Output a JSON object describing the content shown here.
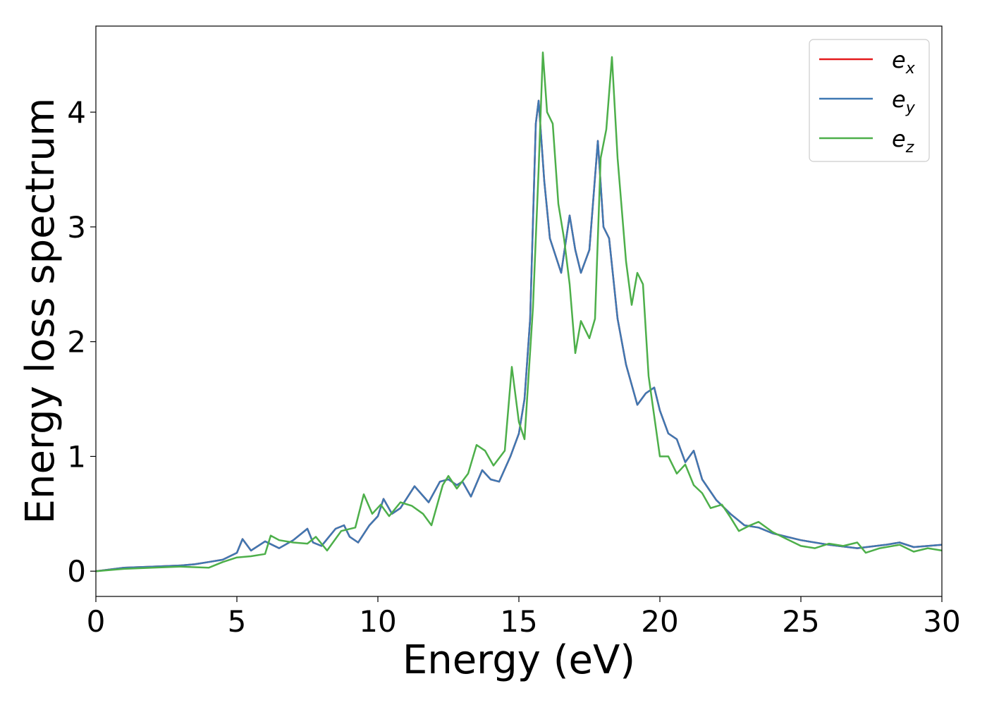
{
  "chart_data": {
    "type": "line",
    "title": "",
    "xlabel": "Energy (eV)",
    "ylabel": "Energy loss spectrum",
    "xlim": [
      0,
      30
    ],
    "ylim": [
      -0.22,
      4.75
    ],
    "x_ticks": [
      0,
      5,
      10,
      15,
      20,
      25,
      30
    ],
    "y_ticks": [
      0,
      1,
      2,
      3,
      4
    ],
    "grid": false,
    "legend_position": "top-right",
    "series": [
      {
        "name": "e_x",
        "label_base": "e",
        "label_sub": "x",
        "color": "#e41a1c",
        "points": [
          [
            0,
            0
          ],
          [
            1,
            0.03
          ],
          [
            2,
            0.04
          ],
          [
            3,
            0.05
          ],
          [
            3.5,
            0.06
          ],
          [
            4,
            0.08
          ],
          [
            4.5,
            0.1
          ],
          [
            5,
            0.16
          ],
          [
            5.2,
            0.28
          ],
          [
            5.5,
            0.18
          ],
          [
            6,
            0.26
          ],
          [
            6.5,
            0.2
          ],
          [
            7,
            0.27
          ],
          [
            7.5,
            0.37
          ],
          [
            7.7,
            0.25
          ],
          [
            8,
            0.22
          ],
          [
            8.5,
            0.37
          ],
          [
            8.8,
            0.4
          ],
          [
            9,
            0.3
          ],
          [
            9.3,
            0.25
          ],
          [
            9.7,
            0.4
          ],
          [
            10,
            0.48
          ],
          [
            10.2,
            0.63
          ],
          [
            10.5,
            0.5
          ],
          [
            10.8,
            0.55
          ],
          [
            11.3,
            0.74
          ],
          [
            11.8,
            0.6
          ],
          [
            12.2,
            0.78
          ],
          [
            12.5,
            0.8
          ],
          [
            12.8,
            0.75
          ],
          [
            13,
            0.78
          ],
          [
            13.3,
            0.65
          ],
          [
            13.7,
            0.88
          ],
          [
            14,
            0.8
          ],
          [
            14.3,
            0.78
          ],
          [
            14.7,
            1.0
          ],
          [
            15,
            1.2
          ],
          [
            15.2,
            1.5
          ],
          [
            15.4,
            2.2
          ],
          [
            15.6,
            3.9
          ],
          [
            15.7,
            4.1
          ],
          [
            15.9,
            3.4
          ],
          [
            16.1,
            2.9
          ],
          [
            16.5,
            2.6
          ],
          [
            16.8,
            3.1
          ],
          [
            17.0,
            2.8
          ],
          [
            17.2,
            2.6
          ],
          [
            17.5,
            2.8
          ],
          [
            17.8,
            3.75
          ],
          [
            18.0,
            3.0
          ],
          [
            18.2,
            2.9
          ],
          [
            18.5,
            2.2
          ],
          [
            18.8,
            1.8
          ],
          [
            19.2,
            1.45
          ],
          [
            19.5,
            1.55
          ],
          [
            19.8,
            1.6
          ],
          [
            20.0,
            1.4
          ],
          [
            20.3,
            1.2
          ],
          [
            20.6,
            1.15
          ],
          [
            20.9,
            0.95
          ],
          [
            21.2,
            1.05
          ],
          [
            21.5,
            0.8
          ],
          [
            22,
            0.62
          ],
          [
            22.5,
            0.5
          ],
          [
            23,
            0.4
          ],
          [
            23.5,
            0.38
          ],
          [
            24,
            0.33
          ],
          [
            24.5,
            0.3
          ],
          [
            25,
            0.27
          ],
          [
            26,
            0.23
          ],
          [
            27,
            0.2
          ],
          [
            28,
            0.23
          ],
          [
            28.5,
            0.25
          ],
          [
            29,
            0.21
          ],
          [
            29.5,
            0.22
          ],
          [
            30,
            0.23
          ]
        ]
      },
      {
        "name": "e_y",
        "label_base": "e",
        "label_sub": "y",
        "color": "#3e78b2",
        "points": [
          [
            0,
            0
          ],
          [
            1,
            0.03
          ],
          [
            2,
            0.04
          ],
          [
            3,
            0.05
          ],
          [
            3.5,
            0.06
          ],
          [
            4,
            0.08
          ],
          [
            4.5,
            0.1
          ],
          [
            5,
            0.16
          ],
          [
            5.2,
            0.28
          ],
          [
            5.5,
            0.18
          ],
          [
            6,
            0.26
          ],
          [
            6.5,
            0.2
          ],
          [
            7,
            0.27
          ],
          [
            7.5,
            0.37
          ],
          [
            7.7,
            0.25
          ],
          [
            8,
            0.22
          ],
          [
            8.5,
            0.37
          ],
          [
            8.8,
            0.4
          ],
          [
            9,
            0.3
          ],
          [
            9.3,
            0.25
          ],
          [
            9.7,
            0.4
          ],
          [
            10,
            0.48
          ],
          [
            10.2,
            0.63
          ],
          [
            10.5,
            0.5
          ],
          [
            10.8,
            0.55
          ],
          [
            11.3,
            0.74
          ],
          [
            11.8,
            0.6
          ],
          [
            12.2,
            0.78
          ],
          [
            12.5,
            0.8
          ],
          [
            12.8,
            0.75
          ],
          [
            13,
            0.78
          ],
          [
            13.3,
            0.65
          ],
          [
            13.7,
            0.88
          ],
          [
            14,
            0.8
          ],
          [
            14.3,
            0.78
          ],
          [
            14.7,
            1.0
          ],
          [
            15,
            1.2
          ],
          [
            15.2,
            1.5
          ],
          [
            15.4,
            2.2
          ],
          [
            15.6,
            3.9
          ],
          [
            15.7,
            4.1
          ],
          [
            15.9,
            3.4
          ],
          [
            16.1,
            2.9
          ],
          [
            16.5,
            2.6
          ],
          [
            16.8,
            3.1
          ],
          [
            17.0,
            2.8
          ],
          [
            17.2,
            2.6
          ],
          [
            17.5,
            2.8
          ],
          [
            17.8,
            3.75
          ],
          [
            18.0,
            3.0
          ],
          [
            18.2,
            2.9
          ],
          [
            18.5,
            2.2
          ],
          [
            18.8,
            1.8
          ],
          [
            19.2,
            1.45
          ],
          [
            19.5,
            1.55
          ],
          [
            19.8,
            1.6
          ],
          [
            20.0,
            1.4
          ],
          [
            20.3,
            1.2
          ],
          [
            20.6,
            1.15
          ],
          [
            20.9,
            0.95
          ],
          [
            21.2,
            1.05
          ],
          [
            21.5,
            0.8
          ],
          [
            22,
            0.62
          ],
          [
            22.5,
            0.5
          ],
          [
            23,
            0.4
          ],
          [
            23.5,
            0.38
          ],
          [
            24,
            0.33
          ],
          [
            24.5,
            0.3
          ],
          [
            25,
            0.27
          ],
          [
            26,
            0.23
          ],
          [
            27,
            0.2
          ],
          [
            28,
            0.23
          ],
          [
            28.5,
            0.25
          ],
          [
            29,
            0.21
          ],
          [
            29.5,
            0.22
          ],
          [
            30,
            0.23
          ]
        ]
      },
      {
        "name": "e_z",
        "label_base": "e",
        "label_sub": "z",
        "color": "#4daf4a",
        "points": [
          [
            0,
            0
          ],
          [
            1,
            0.02
          ],
          [
            2,
            0.03
          ],
          [
            3,
            0.04
          ],
          [
            4,
            0.03
          ],
          [
            4.5,
            0.08
          ],
          [
            5,
            0.12
          ],
          [
            5.5,
            0.13
          ],
          [
            6,
            0.15
          ],
          [
            6.2,
            0.31
          ],
          [
            6.5,
            0.27
          ],
          [
            7,
            0.25
          ],
          [
            7.5,
            0.24
          ],
          [
            7.8,
            0.3
          ],
          [
            8.2,
            0.18
          ],
          [
            8.7,
            0.35
          ],
          [
            9.2,
            0.38
          ],
          [
            9.5,
            0.67
          ],
          [
            9.8,
            0.5
          ],
          [
            10.1,
            0.58
          ],
          [
            10.4,
            0.48
          ],
          [
            10.8,
            0.6
          ],
          [
            11.2,
            0.57
          ],
          [
            11.6,
            0.5
          ],
          [
            11.9,
            0.4
          ],
          [
            12.3,
            0.75
          ],
          [
            12.5,
            0.83
          ],
          [
            12.8,
            0.72
          ],
          [
            13.2,
            0.85
          ],
          [
            13.5,
            1.1
          ],
          [
            13.8,
            1.05
          ],
          [
            14.1,
            0.92
          ],
          [
            14.5,
            1.05
          ],
          [
            14.75,
            1.78
          ],
          [
            15.0,
            1.3
          ],
          [
            15.2,
            1.15
          ],
          [
            15.5,
            2.3
          ],
          [
            15.7,
            3.5
          ],
          [
            15.85,
            4.52
          ],
          [
            16.0,
            4.0
          ],
          [
            16.2,
            3.9
          ],
          [
            16.4,
            3.2
          ],
          [
            16.6,
            2.9
          ],
          [
            16.8,
            2.5
          ],
          [
            17.0,
            1.9
          ],
          [
            17.2,
            2.18
          ],
          [
            17.5,
            2.03
          ],
          [
            17.7,
            2.2
          ],
          [
            17.9,
            3.6
          ],
          [
            18.1,
            3.85
          ],
          [
            18.3,
            4.48
          ],
          [
            18.5,
            3.6
          ],
          [
            18.8,
            2.7
          ],
          [
            19.0,
            2.32
          ],
          [
            19.2,
            2.6
          ],
          [
            19.4,
            2.5
          ],
          [
            19.6,
            1.7
          ],
          [
            19.8,
            1.35
          ],
          [
            20.0,
            1.0
          ],
          [
            20.3,
            1.0
          ],
          [
            20.6,
            0.85
          ],
          [
            20.9,
            0.93
          ],
          [
            21.2,
            0.75
          ],
          [
            21.5,
            0.68
          ],
          [
            21.8,
            0.55
          ],
          [
            22.2,
            0.58
          ],
          [
            22.5,
            0.47
          ],
          [
            22.8,
            0.35
          ],
          [
            23.2,
            0.4
          ],
          [
            23.5,
            0.43
          ],
          [
            24,
            0.34
          ],
          [
            24.5,
            0.28
          ],
          [
            25,
            0.22
          ],
          [
            25.5,
            0.2
          ],
          [
            26,
            0.24
          ],
          [
            26.5,
            0.22
          ],
          [
            27,
            0.25
          ],
          [
            27.3,
            0.16
          ],
          [
            27.8,
            0.2
          ],
          [
            28.5,
            0.23
          ],
          [
            29,
            0.17
          ],
          [
            29.5,
            0.2
          ],
          [
            30,
            0.18
          ]
        ]
      }
    ]
  }
}
